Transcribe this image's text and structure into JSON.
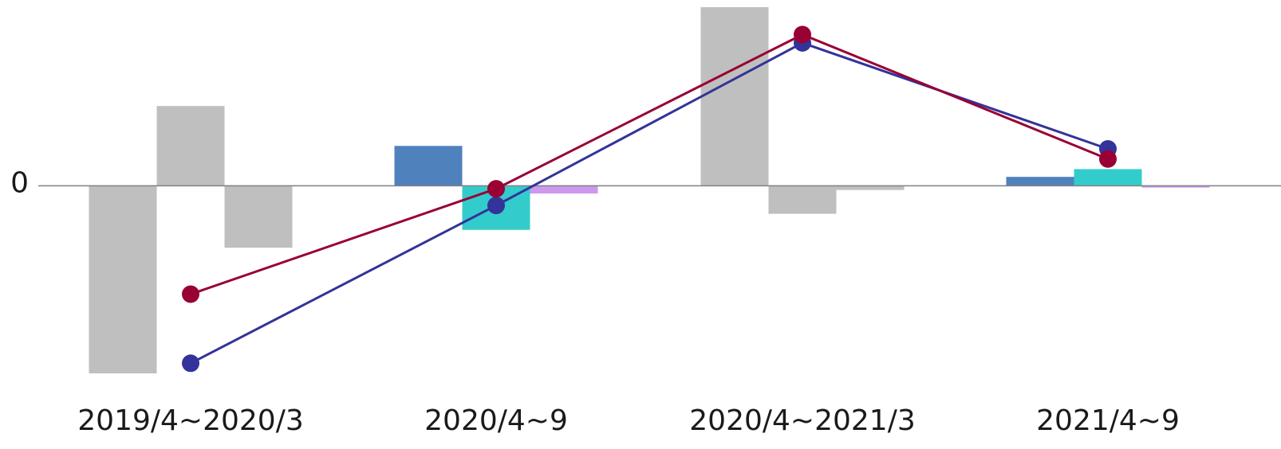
{
  "chart_data": {
    "type": "bar",
    "categories": [
      "2019/4~2020/3",
      "2020/4~9",
      "2020/4~2021/3",
      "2021/4~9"
    ],
    "y_tick_labels": [
      "0"
    ],
    "ylim": [
      -3.15,
      3.0
    ],
    "bar_series": [
      {
        "values": [
          -3.15,
          0.67,
          3.0,
          0.15
        ],
        "colors": [
          "#bfbfbf",
          "#4f81bd",
          "#bfbfbf",
          "#4f81bd"
        ]
      },
      {
        "values": [
          1.34,
          -0.74,
          -0.47,
          0.28
        ],
        "colors": [
          "#bfbfbf",
          "#33cccc",
          "#bfbfbf",
          "#33cccc"
        ]
      },
      {
        "values": [
          -1.04,
          -0.13,
          -0.07,
          -0.03
        ],
        "colors": [
          "#bfbfbf",
          "#cc99ee",
          "#bfbfbf",
          "#cc99ee"
        ]
      }
    ],
    "line_series": [
      {
        "color": "#333399",
        "values": [
          -2.98,
          -0.33,
          2.4,
          0.62
        ]
      },
      {
        "color": "#990033",
        "values": [
          -1.82,
          -0.05,
          2.54,
          0.45
        ]
      }
    ],
    "colors": {
      "axis": "#808080",
      "text": "#1a1a1a"
    }
  }
}
